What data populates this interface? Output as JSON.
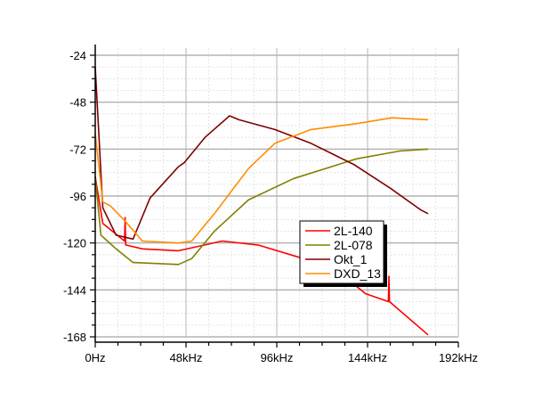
{
  "chart_data": {
    "type": "line",
    "title": "",
    "xlabel": "",
    "ylabel": "",
    "xlim": [
      0,
      192
    ],
    "ylim": [
      -168,
      -24
    ],
    "x_unit": "kHz",
    "x_ticks": [
      0,
      48,
      96,
      144,
      192
    ],
    "x_tick_labels": [
      "0Hz",
      "48kHz",
      "96kHz",
      "144kHz",
      "192kHz"
    ],
    "y_ticks": [
      -24,
      -48,
      -72,
      -96,
      -120,
      -144,
      -168
    ],
    "y_tick_labels": [
      "-24",
      "-48",
      "-72",
      "-96",
      "-120",
      "-144",
      "-168"
    ],
    "grid": true,
    "legend_position": "lower-center-right",
    "series": [
      {
        "name": "2L-140",
        "color": "#ff0000",
        "x": [
          0,
          4,
          15.5,
          15.8,
          16.1,
          25,
          44,
          58,
          67,
          86,
          110,
          129,
          143,
          143.2,
          155,
          155.3,
          155.6,
          176
        ],
        "y": [
          -86,
          -110,
          -119,
          -107,
          -121,
          -123,
          -124,
          -121,
          -119,
          -121,
          -128,
          -135,
          -146,
          -146,
          -150,
          -137,
          -150,
          -167
        ]
      },
      {
        "name": "2L-078",
        "color": "#808000",
        "x": [
          0,
          3,
          11,
          20,
          44,
          51,
          63,
          81,
          105,
          138,
          161,
          176
        ],
        "y": [
          -86,
          -116,
          -123,
          -130,
          -131,
          -128,
          -114,
          -98,
          -87,
          -77,
          -73,
          -72
        ]
      },
      {
        "name": "Okt_1",
        "color": "#800000",
        "x": [
          0,
          4,
          11,
          20,
          29,
          44,
          47,
          58,
          71,
          76,
          95,
          114,
          137,
          156,
          172,
          176
        ],
        "y": [
          -30,
          -102,
          -116,
          -118,
          -97,
          -81,
          -79,
          -66,
          -55,
          -57,
          -62,
          -69,
          -80,
          -92,
          -103,
          -105
        ]
      },
      {
        "name": "DXD_13",
        "color": "#ff8c00",
        "x": [
          0,
          4,
          8,
          15,
          25,
          44,
          51,
          63,
          81,
          95,
          114,
          138,
          157,
          176
        ],
        "y": [
          -64,
          -99,
          -101,
          -108,
          -119,
          -120,
          -119,
          -105,
          -82,
          -69,
          -62,
          -59,
          -56,
          -57
        ]
      }
    ]
  },
  "legend": {
    "items": [
      {
        "label": "2L-140",
        "color": "#ff0000"
      },
      {
        "label": "2L-078",
        "color": "#808000"
      },
      {
        "label": "Okt_1",
        "color": "#800000"
      },
      {
        "label": "DXD_13",
        "color": "#ff8c00"
      }
    ]
  }
}
